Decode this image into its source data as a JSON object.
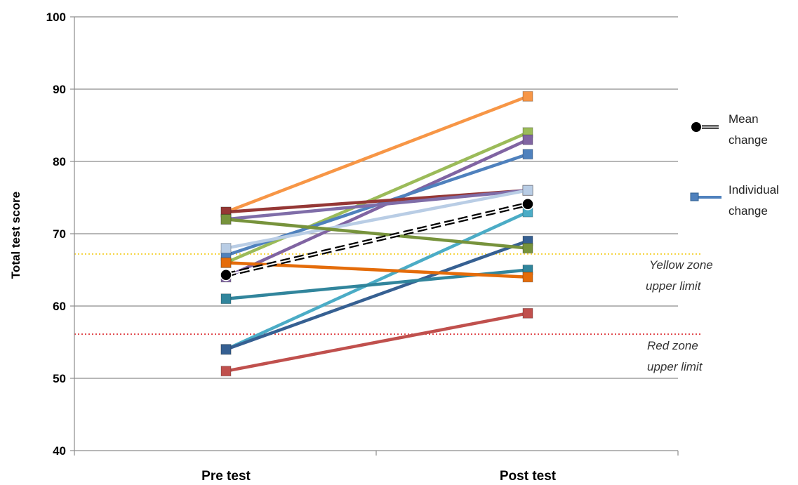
{
  "chart_data": {
    "type": "line",
    "ylabel": "Total test score",
    "ylim": [
      40,
      100
    ],
    "yticks": [
      "40",
      "50",
      "60",
      "70",
      "80",
      "90",
      "100"
    ],
    "categories": [
      "Pre test",
      "Post test"
    ],
    "grid": true,
    "series": [
      {
        "color": "#f79646",
        "values": [
          73,
          89
        ]
      },
      {
        "color": "#9bbb59",
        "values": [
          66,
          84
        ]
      },
      {
        "color": "#8064a2",
        "values": [
          64,
          83
        ]
      },
      {
        "color": "#4f81bd",
        "values": [
          67,
          81
        ]
      },
      {
        "color": "#953735",
        "values": [
          73,
          76
        ]
      },
      {
        "color": "#7f6da8",
        "values": [
          72,
          76
        ]
      },
      {
        "color": "#b9cde5",
        "values": [
          68,
          76
        ]
      },
      {
        "color": "#4bacc6",
        "values": [
          54,
          73
        ]
      },
      {
        "color": "#366092",
        "values": [
          54,
          69
        ]
      },
      {
        "color": "#77933c",
        "values": [
          72,
          68
        ]
      },
      {
        "color": "#31859c",
        "values": [
          61,
          65
        ]
      },
      {
        "color": "#e46c0a",
        "values": [
          66,
          64
        ]
      },
      {
        "color": "#c0504d",
        "values": [
          51,
          59
        ]
      }
    ],
    "mean": {
      "values": [
        64.3,
        74.1
      ],
      "color": "#000000"
    },
    "reference_lines": [
      {
        "value": 67.2,
        "color": "#f5d23a",
        "label_line1": "Yellow zone",
        "label_line2": "upper limit"
      },
      {
        "value": 56.1,
        "color": "#e0464a",
        "label_line1": "Red zone",
        "label_line2": "upper limit"
      }
    ],
    "legend": {
      "position": "right",
      "mean_line1": "Mean",
      "mean_line2": "change",
      "individual_line1": "Individual",
      "individual_line2": "change",
      "individual_color": "#4f81bd"
    }
  }
}
